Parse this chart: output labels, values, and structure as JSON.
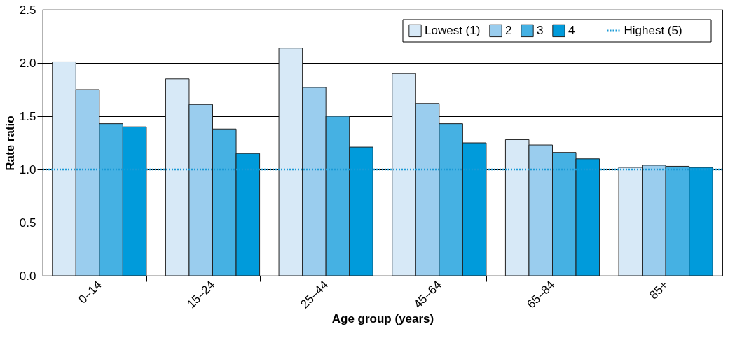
{
  "chart_data": {
    "type": "bar",
    "xlabel": "Age group (years)",
    "ylabel": "Rate ratio",
    "categories": [
      "0–14",
      "15–24",
      "25–44",
      "45–64",
      "65–84",
      "85+"
    ],
    "series": [
      {
        "name": "Lowest (1)",
        "color": "#d7e9f7",
        "values": [
          2.01,
          1.85,
          2.14,
          1.9,
          1.28,
          1.02
        ]
      },
      {
        "name": "2",
        "color": "#9acdee",
        "values": [
          1.75,
          1.61,
          1.77,
          1.62,
          1.23,
          1.04
        ]
      },
      {
        "name": "3",
        "color": "#45b1e3",
        "values": [
          1.43,
          1.38,
          1.5,
          1.43,
          1.16,
          1.03
        ]
      },
      {
        "name": "4",
        "color": "#009bdb",
        "values": [
          1.4,
          1.15,
          1.21,
          1.25,
          1.1,
          1.02
        ]
      }
    ],
    "ref_lines": [
      {
        "axis": "y",
        "value": 1.0,
        "label": "Highest (5)",
        "color": "#1a9ad6",
        "line_style": "dotted"
      }
    ],
    "ylim": [
      0,
      2.5
    ],
    "yticks": [
      {
        "value": 0,
        "label": "0.0"
      },
      0.5,
      {
        "value": 1,
        "label": "1.0"
      },
      1.5,
      {
        "value": 2,
        "label": "2.0"
      },
      2.5
    ],
    "grid": "y",
    "legend": "top right"
  }
}
